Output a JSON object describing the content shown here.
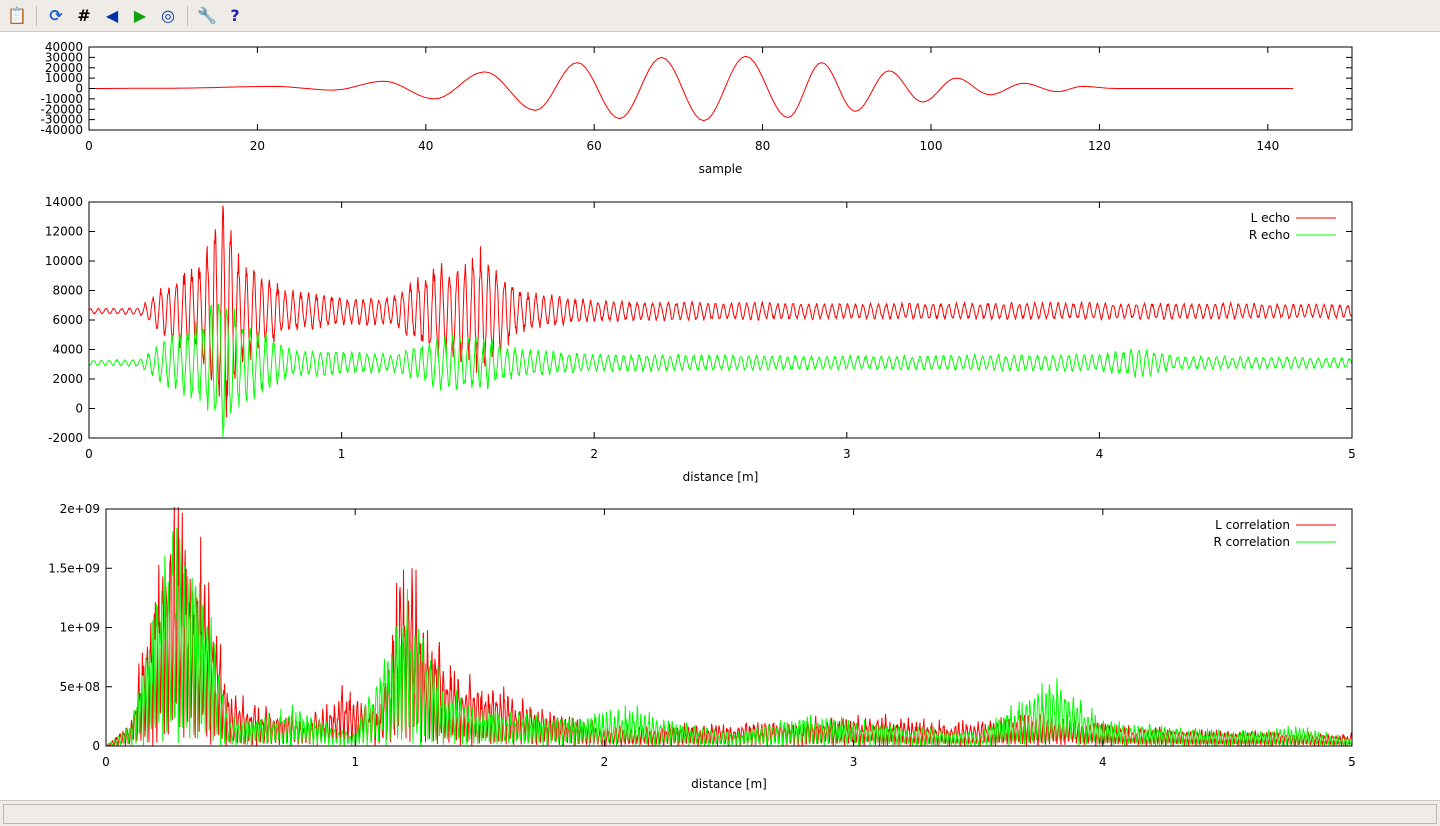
{
  "toolbar": {
    "buttons": [
      {
        "name": "copy-to-clipboard",
        "icon": "clipboard-icon",
        "glyph": "📋",
        "color": "#c8a000"
      },
      {
        "name": "replot",
        "icon": "refresh-icon",
        "glyph": "⟳",
        "color": "#1a5fc8"
      },
      {
        "name": "toggle-grid",
        "icon": "grid-icon",
        "glyph": "#",
        "color": "#000"
      },
      {
        "name": "zoom-previous",
        "icon": "zoom-back-icon",
        "glyph": "◀",
        "color": "#0033aa"
      },
      {
        "name": "zoom-next",
        "icon": "zoom-forward-icon",
        "glyph": "▶",
        "color": "#10a010"
      },
      {
        "name": "autoscale",
        "icon": "zoom-fit-icon",
        "glyph": "◎",
        "color": "#0033aa"
      },
      {
        "name": "settings",
        "icon": "wrench-icon",
        "glyph": "🔧",
        "color": "#c08000"
      },
      {
        "name": "help",
        "icon": "help-icon",
        "glyph": "?",
        "color": "#2020b0"
      }
    ]
  },
  "chart_data": [
    {
      "type": "line",
      "xlabel": "sample",
      "ylabel": "",
      "xlim": [
        0,
        150
      ],
      "ylim": [
        -40000,
        40000
      ],
      "xticks": [
        "0",
        "20",
        "40",
        "60",
        "80",
        "100",
        "120",
        "140"
      ],
      "yticks": [
        "-40000",
        "-30000",
        "-20000",
        "-10000",
        "0",
        "10000",
        "20000",
        "30000",
        "40000"
      ],
      "series": [
        {
          "color": "#ff0000",
          "extrema": [
            [
              0,
              0
            ],
            [
              10,
              300
            ],
            [
              22,
              2000
            ],
            [
              29,
              -1500
            ],
            [
              35,
              7000
            ],
            [
              41,
              -10000
            ],
            [
              47,
              16000
            ],
            [
              53,
              -21000
            ],
            [
              58,
              25000
            ],
            [
              63,
              -29000
            ],
            [
              68,
              30000
            ],
            [
              73,
              -31000
            ],
            [
              78,
              31000
            ],
            [
              83,
              -28000
            ],
            [
              87,
              25000
            ],
            [
              91,
              -22000
            ],
            [
              95,
              17000
            ],
            [
              99,
              -13000
            ],
            [
              103,
              10000
            ],
            [
              107,
              -6000
            ],
            [
              111,
              5000
            ],
            [
              115,
              -3000
            ],
            [
              118,
              2000
            ],
            [
              122,
              0
            ],
            [
              143,
              0
            ]
          ]
        }
      ]
    },
    {
      "type": "line",
      "xlabel": "distance [m]",
      "ylabel": "",
      "xlim": [
        0,
        5
      ],
      "ylim": [
        -2000,
        14000
      ],
      "xticks": [
        "0",
        "1",
        "2",
        "3",
        "4",
        "5"
      ],
      "yticks": [
        "-2000",
        "0",
        "2000",
        "4000",
        "6000",
        "8000",
        "10000",
        "12000",
        "14000"
      ],
      "legend": "top-right",
      "series": [
        {
          "name": "L echo",
          "color": "#ff0000",
          "baseline": 6600,
          "envelope": [
            [
              0,
              150
            ],
            [
              0.2,
              200
            ],
            [
              0.3,
              1500
            ],
            [
              0.45,
              3000
            ],
            [
              0.53,
              6800
            ],
            [
              0.6,
              3000
            ],
            [
              0.8,
              1200
            ],
            [
              1.0,
              800
            ],
            [
              1.2,
              800
            ],
            [
              1.35,
              2500
            ],
            [
              1.5,
              3000
            ],
            [
              1.55,
              3700
            ],
            [
              1.7,
              1200
            ],
            [
              2.0,
              600
            ],
            [
              3.0,
              450
            ],
            [
              4.0,
              500
            ],
            [
              5.0,
              400
            ]
          ]
        },
        {
          "name": "R echo",
          "color": "#00ff00",
          "baseline": 3100,
          "envelope": [
            [
              0,
              150
            ],
            [
              0.2,
              200
            ],
            [
              0.3,
              1300
            ],
            [
              0.45,
              2500
            ],
            [
              0.53,
              4900
            ],
            [
              0.6,
              2500
            ],
            [
              0.8,
              800
            ],
            [
              1.0,
              700
            ],
            [
              1.2,
              500
            ],
            [
              1.4,
              1600
            ],
            [
              1.55,
              1600
            ],
            [
              1.7,
              800
            ],
            [
              2.0,
              500
            ],
            [
              3.0,
              400
            ],
            [
              4.0,
              500
            ],
            [
              4.15,
              900
            ],
            [
              4.3,
              400
            ],
            [
              5.0,
              300
            ]
          ]
        }
      ]
    },
    {
      "type": "line",
      "xlabel": "distance [m]",
      "ylabel": "",
      "xlim": [
        0,
        5
      ],
      "ylim": [
        0,
        2000000000
      ],
      "xticks": [
        "0",
        "1",
        "2",
        "3",
        "4",
        "5"
      ],
      "yticks": [
        "0",
        "5e+08",
        "1e+09",
        "1.5e+09",
        "2e+09"
      ],
      "legend": "top-right",
      "series": [
        {
          "name": "L correlation",
          "color": "#ff0000",
          "envelope": [
            [
              0,
              0
            ],
            [
              0.1,
              200000000.0
            ],
            [
              0.2,
              1500000000.0
            ],
            [
              0.27,
              2000000000.0
            ],
            [
              0.4,
              1400000000.0
            ],
            [
              0.5,
              400000000.0
            ],
            [
              0.6,
              350000000.0
            ],
            [
              0.8,
              200000000.0
            ],
            [
              0.95,
              450000000.0
            ],
            [
              1.1,
              300000000.0
            ],
            [
              1.2,
              1700000000.0
            ],
            [
              1.3,
              900000000.0
            ],
            [
              1.4,
              600000000.0
            ],
            [
              1.55,
              500000000.0
            ],
            [
              1.75,
              300000000.0
            ],
            [
              2.0,
              150000000.0
            ],
            [
              2.7,
              200000000.0
            ],
            [
              3.1,
              230000000.0
            ],
            [
              3.4,
              180000000.0
            ],
            [
              3.8,
              250000000.0
            ],
            [
              4.1,
              150000000.0
            ],
            [
              4.5,
              120000000.0
            ],
            [
              5.0,
              100000000.0
            ]
          ]
        },
        {
          "name": "R correlation",
          "color": "#00ff00",
          "envelope": [
            [
              0,
              0
            ],
            [
              0.1,
              200000000.0
            ],
            [
              0.25,
              1850000000.0
            ],
            [
              0.4,
              1300000000.0
            ],
            [
              0.5,
              200000000.0
            ],
            [
              0.75,
              300000000.0
            ],
            [
              1.0,
              100000000.0
            ],
            [
              1.2,
              1200000000.0
            ],
            [
              1.35,
              500000000.0
            ],
            [
              1.5,
              300000000.0
            ],
            [
              1.9,
              250000000.0
            ],
            [
              2.1,
              300000000.0
            ],
            [
              2.5,
              100000000.0
            ],
            [
              2.8,
              250000000.0
            ],
            [
              3.5,
              100000000.0
            ],
            [
              3.8,
              550000000.0
            ],
            [
              4.0,
              200000000.0
            ],
            [
              4.5,
              120000000.0
            ],
            [
              4.8,
              150000000.0
            ],
            [
              5.0,
              50000000.0
            ]
          ]
        }
      ]
    }
  ]
}
